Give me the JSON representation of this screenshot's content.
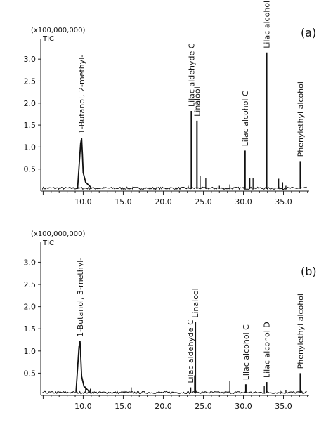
{
  "chart_data": [
    {
      "type": "line",
      "panel_label": "(a)",
      "multiplier": "(x100,000,000)",
      "ylabel": "TIC",
      "xlim": [
        4.7,
        38.2
      ],
      "ylim": [
        0,
        3.45
      ],
      "x_ticks": [
        "10.0",
        "15.0",
        "20.0",
        "25.0",
        "30.0",
        "35.0"
      ],
      "y_ticks": [
        "0.5",
        "1.0",
        "1.5",
        "2.0",
        "2.5",
        "3.0"
      ],
      "peaks": [
        {
          "name": "1-Butanol, 2-methyl-",
          "rt": 9.8,
          "height": 1.2
        },
        {
          "name": "Lilac aldehyde C",
          "rt": 23.5,
          "height": 1.82
        },
        {
          "name": "Linalool",
          "rt": 24.2,
          "height": 1.6
        },
        {
          "name": "Lilac alcohol C",
          "rt": 30.2,
          "height": 0.92
        },
        {
          "name": "Lilac alcohol D",
          "rt": 32.9,
          "height": 3.15
        },
        {
          "name": "Phenylethyl alcohol",
          "rt": 37.1,
          "height": 0.68
        }
      ]
    },
    {
      "type": "line",
      "panel_label": "(b)",
      "multiplier": "(x100,000,000)",
      "ylabel": "TIC",
      "xlim": [
        4.7,
        38.2
      ],
      "ylim": [
        0,
        3.45
      ],
      "x_ticks": [
        "10.0",
        "15.0",
        "20.0",
        "25.0",
        "30.0",
        "35.0"
      ],
      "y_ticks": [
        "0.5",
        "1.0",
        "1.5",
        "2.0",
        "2.5",
        "3.0"
      ],
      "peaks": [
        {
          "name": "1-Butanol, 3-methyl-",
          "rt": 9.6,
          "height": 1.22
        },
        {
          "name": "Lilac aldehyde C",
          "rt": 23.4,
          "height": 0.18
        },
        {
          "name": "Linalool",
          "rt": 24.0,
          "height": 1.65
        },
        {
          "name": "Lilac alcohol C",
          "rt": 30.3,
          "height": 0.25
        },
        {
          "name": "Lilac alcohol D",
          "rt": 32.9,
          "height": 0.3
        },
        {
          "name": "Phenylethyl alcohol",
          "rt": 37.1,
          "height": 0.5
        }
      ]
    }
  ]
}
